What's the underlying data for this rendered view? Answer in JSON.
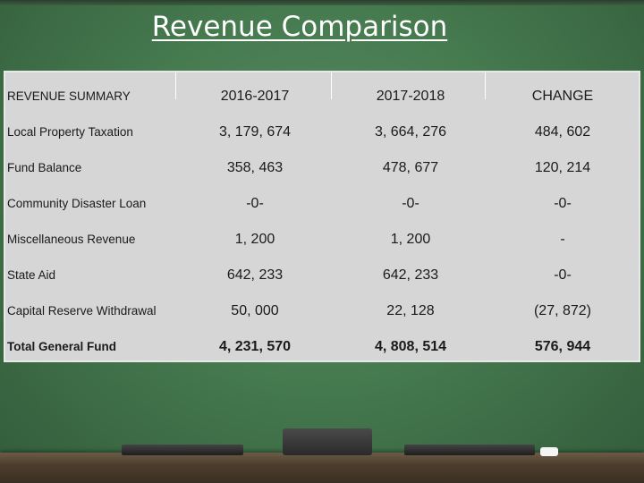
{
  "title": "Revenue Comparison",
  "table": {
    "headers": [
      "REVENUE SUMMARY",
      "2016-2017",
      "2017-2018",
      "CHANGE"
    ],
    "rows": [
      [
        "Local Property Taxation",
        "3, 179, 674",
        "3, 664, 276",
        "484, 602"
      ],
      [
        "Fund Balance",
        "358, 463",
        "478, 677",
        "120, 214"
      ],
      [
        "Community Disaster Loan",
        "-0-",
        "-0-",
        "-0-"
      ],
      [
        "Miscellaneous Revenue",
        "1, 200",
        "1, 200",
        "-"
      ],
      [
        "State Aid",
        "642, 233",
        "642, 233",
        "-0-"
      ],
      [
        "Capital Reserve Withdrawal",
        "50, 000",
        "22, 128",
        "(27, 872)"
      ],
      [
        "Total General Fund",
        "4, 231, 570",
        "4, 808, 514",
        "576, 944"
      ]
    ]
  },
  "colors": {
    "board": "#467a4f",
    "table_bg": "#d6d6d6",
    "tray": "#4c3e2e"
  }
}
